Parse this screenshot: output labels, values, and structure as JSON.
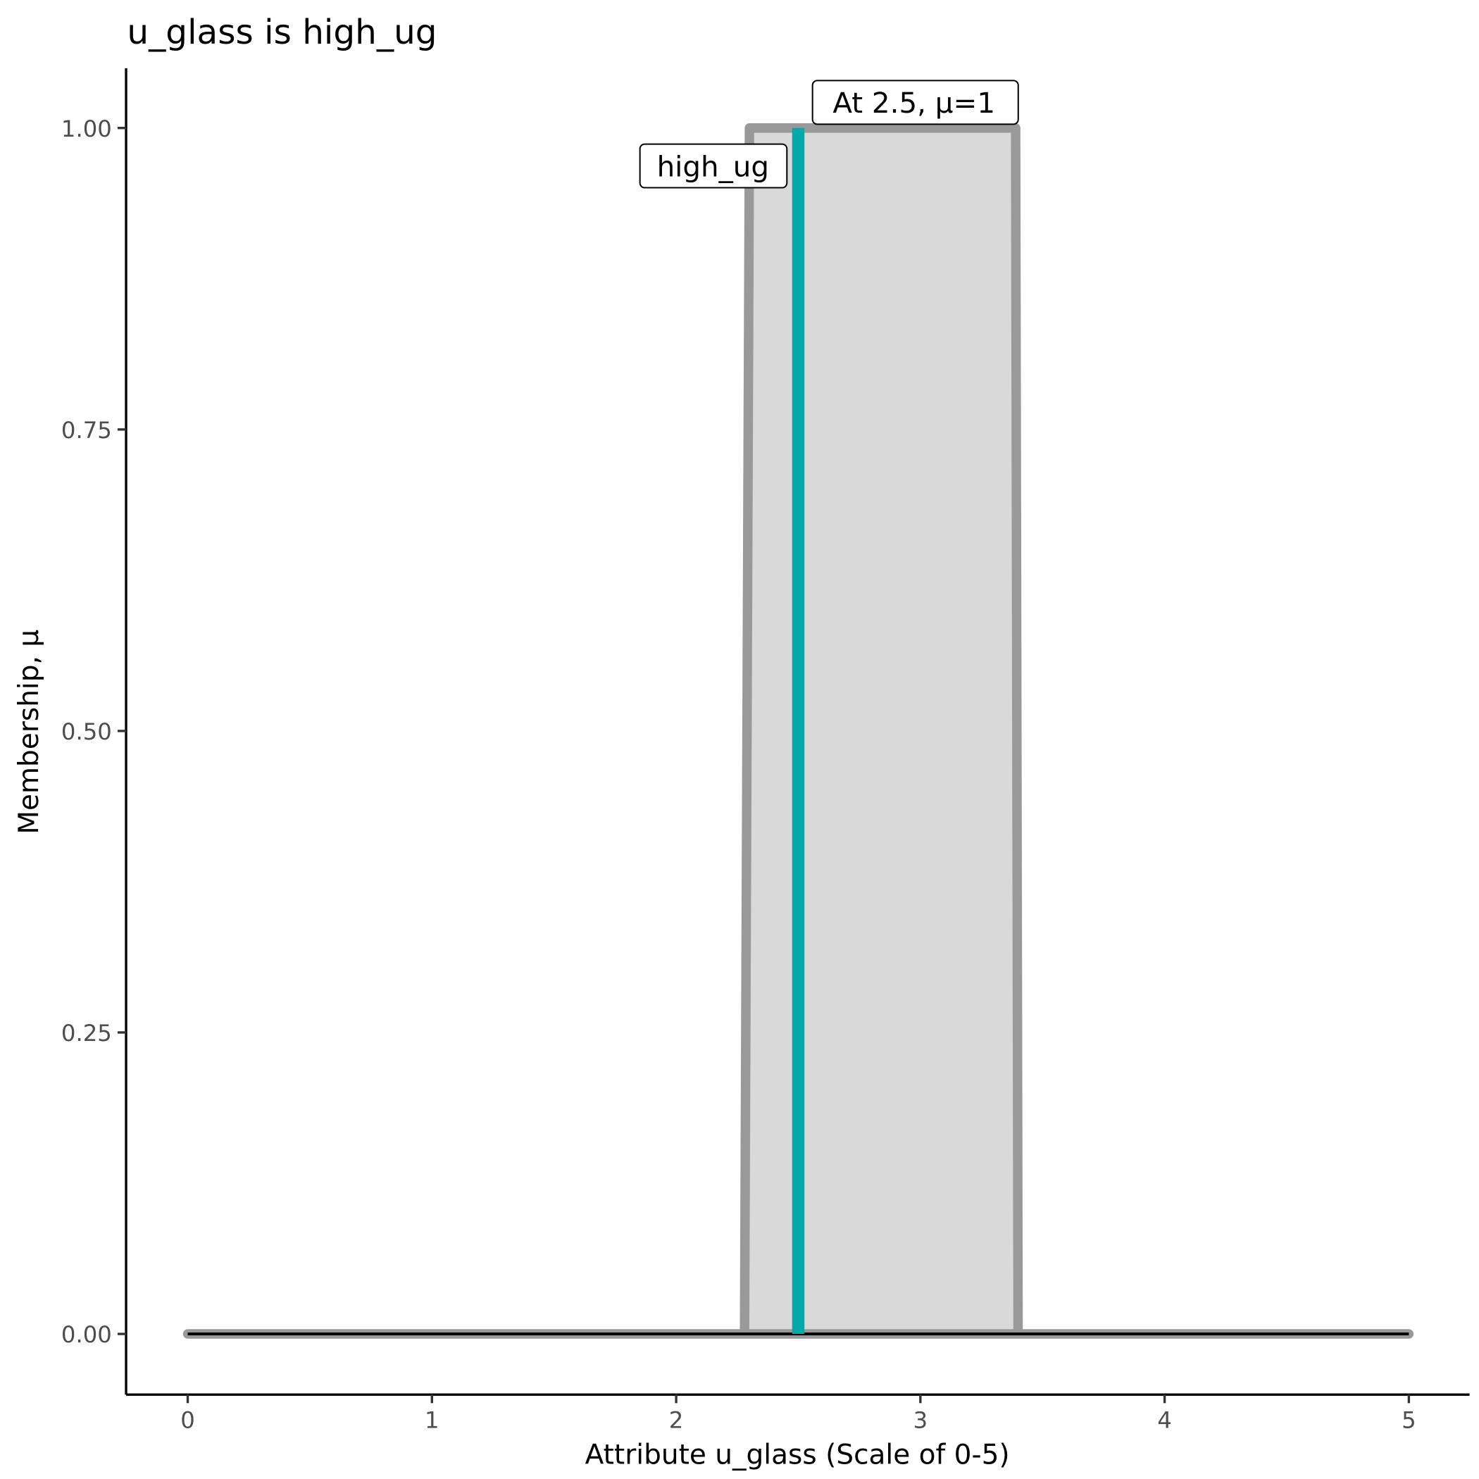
{
  "chart_data": {
    "type": "area",
    "title": "u_glass is high_ug",
    "xlabel": "Attribute u_glass (Scale of 0-5)",
    "ylabel": "Membership, μ",
    "xlim": [
      0,
      5
    ],
    "ylim": [
      0,
      1
    ],
    "x_ticks": [
      "0",
      "1",
      "2",
      "3",
      "4",
      "5"
    ],
    "y_ticks": [
      "0.00",
      "0.25",
      "0.50",
      "0.75",
      "1.00"
    ],
    "grid": false,
    "membership_function": {
      "name": "high_ug",
      "x": [
        0,
        2.28,
        2.3,
        3.39,
        3.4,
        5
      ],
      "y": [
        0,
        0,
        1,
        1,
        0,
        0
      ],
      "fill_color": "#d9d9d9",
      "line_color": "#999999"
    },
    "marker": {
      "x": 2.5,
      "mu": 1,
      "color": "#00aaaa",
      "label": "At 2.5, μ=1"
    },
    "set_label": "high_ug"
  }
}
